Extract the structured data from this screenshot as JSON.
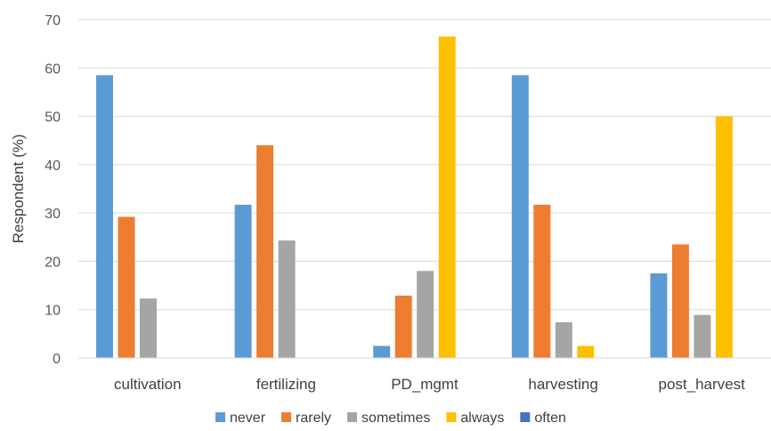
{
  "chart_data": {
    "type": "bar",
    "title": "",
    "xlabel": "",
    "ylabel": "Respondent (%)",
    "ylim": [
      0,
      70
    ],
    "yticks": [
      0,
      10,
      20,
      30,
      40,
      50,
      60,
      70
    ],
    "grid": true,
    "legend_position": "bottom",
    "categories": [
      "cultivation",
      "fertilizing",
      "PD_mgmt",
      "harvesting",
      "post_harvest"
    ],
    "series": [
      {
        "name": "never",
        "color": "#5B9BD5",
        "values": [
          58.5,
          31.7,
          2.5,
          58.5,
          17.5
        ]
      },
      {
        "name": "rarely",
        "color": "#ED7D31",
        "values": [
          29.2,
          44.0,
          12.9,
          31.7,
          23.5
        ]
      },
      {
        "name": "sometimes",
        "color": "#A5A5A5",
        "values": [
          12.3,
          24.3,
          18.0,
          7.4,
          8.9
        ]
      },
      {
        "name": "always",
        "color": "#FFC000",
        "values": [
          0,
          0,
          66.5,
          2.5,
          50.0
        ]
      },
      {
        "name": "often",
        "color": "#4472C4",
        "values": [
          0,
          0,
          0,
          0,
          0
        ]
      }
    ]
  }
}
